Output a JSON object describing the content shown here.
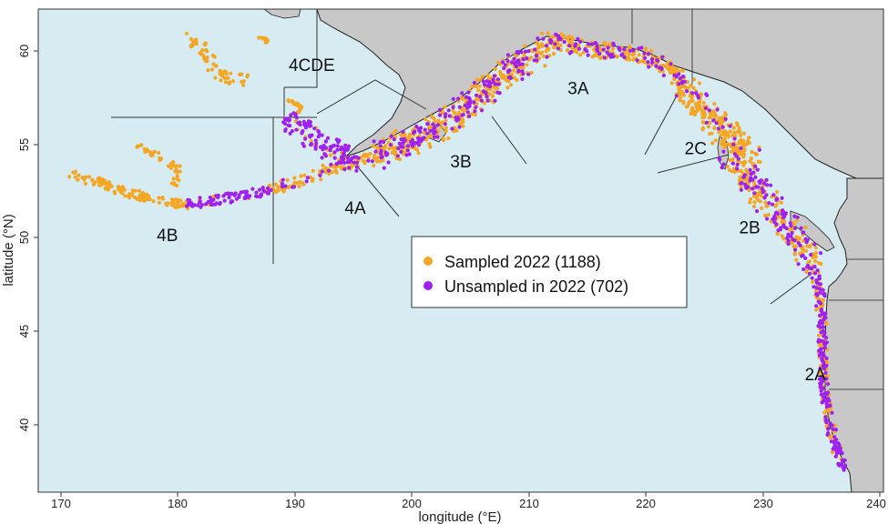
{
  "chart_data": {
    "type": "map",
    "xlabel": "longitude (°E)",
    "ylabel": "latitude (°N)",
    "xlim": [
      168,
      240
    ],
    "ylim": [
      37,
      62
    ],
    "x_ticks": [
      "170",
      "180",
      "190",
      "200",
      "210",
      "220",
      "230",
      "240"
    ],
    "y_ticks": [
      "40",
      "45",
      "50",
      "55",
      "60"
    ],
    "regions": [
      {
        "label": "4CDE",
        "lon": 191.3,
        "lat": 58.8
      },
      {
        "label": "3A",
        "lon": 214.0,
        "lat": 57.6
      },
      {
        "label": "2C",
        "lon": 224.0,
        "lat": 54.5
      },
      {
        "label": "3B",
        "lon": 204.0,
        "lat": 53.8
      },
      {
        "label": "4A",
        "lon": 195.0,
        "lat": 51.4
      },
      {
        "label": "2B",
        "lon": 228.6,
        "lat": 50.4
      },
      {
        "label": "4B",
        "lon": 179.0,
        "lat": 50.0
      },
      {
        "label": "2A",
        "lon": 234.2,
        "lat": 42.8
      }
    ],
    "legend": {
      "position": "center",
      "entries": [
        {
          "label": "Sampled 2022 (1188)",
          "color": "#f5a623"
        },
        {
          "label": "Unsampled in 2022 (702)",
          "color": "#a020f0"
        }
      ]
    },
    "colors": {
      "ocean": "#d6ebf2",
      "land": "#c8c8c8",
      "coast": "#111111"
    }
  }
}
